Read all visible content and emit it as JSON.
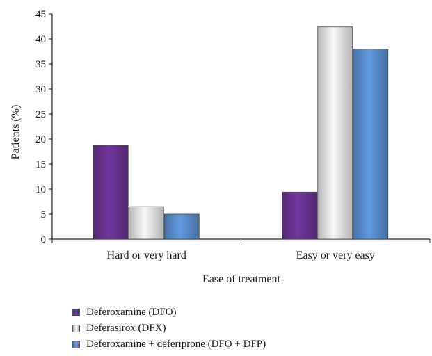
{
  "chart_data": {
    "type": "bar",
    "categories": [
      "Hard or very hard",
      "Easy or very easy"
    ],
    "series": [
      {
        "name": "Deferoxamine (DFO)",
        "values": [
          18.8,
          9.4
        ],
        "color": "#6a3291"
      },
      {
        "name": "Deferasirox (DFX)",
        "values": [
          6.5,
          42.4
        ],
        "color": "#e6e6e6"
      },
      {
        "name": "Deferoxamine + deferiprone (DFO + DFP)",
        "values": [
          5.0,
          38.0
        ],
        "color": "#5a8fd0"
      }
    ],
    "title": "",
    "xlabel": "Ease of treatment",
    "ylabel": "Patients (%)",
    "ylim": [
      0,
      45
    ],
    "yticks": [
      0,
      5,
      10,
      15,
      20,
      25,
      30,
      35,
      40,
      45
    ],
    "grid": false,
    "legend_position": "bottom"
  }
}
